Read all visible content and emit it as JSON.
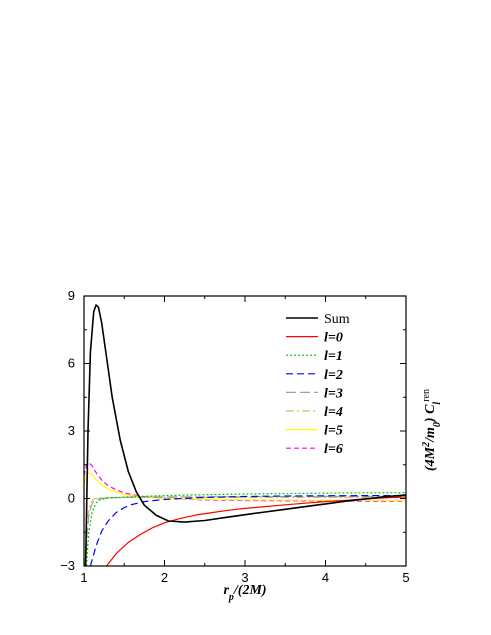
{
  "chart_data": {
    "type": "line",
    "xlabel": "r_p/(2M)",
    "ylabel": "(4M^2/m_0) C_l^ren",
    "xlim": [
      1,
      5
    ],
    "ylim": [
      -3,
      9
    ],
    "x_ticks": [
      "1",
      "2",
      "3",
      "4",
      "5"
    ],
    "y_ticks": [
      "−3",
      "0",
      "3",
      "6",
      "9"
    ],
    "grid": false,
    "legend_position": "top-right",
    "series": [
      {
        "name": "Sum",
        "color": "#000000",
        "dash": "solid",
        "points": [
          [
            1.02,
            -3.0
          ],
          [
            1.05,
            3.0
          ],
          [
            1.08,
            6.5
          ],
          [
            1.12,
            8.3
          ],
          [
            1.15,
            8.6
          ],
          [
            1.18,
            8.5
          ],
          [
            1.22,
            7.8
          ],
          [
            1.28,
            6.3
          ],
          [
            1.35,
            4.5
          ],
          [
            1.45,
            2.6
          ],
          [
            1.55,
            1.2
          ],
          [
            1.65,
            0.3
          ],
          [
            1.75,
            -0.3
          ],
          [
            1.9,
            -0.75
          ],
          [
            2.05,
            -1.0
          ],
          [
            2.25,
            -1.05
          ],
          [
            2.5,
            -0.98
          ],
          [
            2.75,
            -0.85
          ],
          [
            3.0,
            -0.72
          ],
          [
            3.25,
            -0.6
          ],
          [
            3.5,
            -0.48
          ],
          [
            3.75,
            -0.36
          ],
          [
            4.0,
            -0.24
          ],
          [
            4.25,
            -0.12
          ],
          [
            4.5,
            -0.02
          ],
          [
            4.75,
            0.08
          ],
          [
            5.0,
            0.16
          ]
        ]
      },
      {
        "name": "l=0",
        "color": "#ff0000",
        "dash": "solid",
        "points": [
          [
            1.28,
            -3.0
          ],
          [
            1.4,
            -2.45
          ],
          [
            1.55,
            -1.95
          ],
          [
            1.7,
            -1.6
          ],
          [
            1.85,
            -1.3
          ],
          [
            2.0,
            -1.08
          ],
          [
            2.2,
            -0.88
          ],
          [
            2.4,
            -0.73
          ],
          [
            2.6,
            -0.62
          ],
          [
            2.8,
            -0.52
          ],
          [
            3.0,
            -0.44
          ],
          [
            3.25,
            -0.36
          ],
          [
            3.5,
            -0.28
          ],
          [
            3.75,
            -0.21
          ],
          [
            4.0,
            -0.14
          ],
          [
            4.25,
            -0.08
          ],
          [
            4.5,
            -0.02
          ],
          [
            4.75,
            0.03
          ],
          [
            5.0,
            0.07
          ]
        ]
      },
      {
        "name": "l=1",
        "color": "#00c800",
        "dash": "2,2",
        "points": [
          [
            1.03,
            -3.0
          ],
          [
            1.06,
            -1.5
          ],
          [
            1.1,
            -0.6
          ],
          [
            1.15,
            -0.2
          ],
          [
            1.2,
            -0.05
          ],
          [
            1.3,
            0.02
          ],
          [
            1.5,
            0.06
          ],
          [
            1.75,
            0.1
          ],
          [
            2.0,
            0.13
          ],
          [
            2.5,
            0.17
          ],
          [
            3.0,
            0.2
          ],
          [
            3.5,
            0.22
          ],
          [
            4.0,
            0.24
          ],
          [
            4.5,
            0.25
          ],
          [
            5.0,
            0.26
          ]
        ]
      },
      {
        "name": "l=2",
        "color": "#0000ff",
        "dash": "7,4",
        "points": [
          [
            1.08,
            -3.0
          ],
          [
            1.15,
            -2.1
          ],
          [
            1.22,
            -1.45
          ],
          [
            1.3,
            -1.0
          ],
          [
            1.4,
            -0.62
          ],
          [
            1.5,
            -0.4
          ],
          [
            1.6,
            -0.26
          ],
          [
            1.75,
            -0.14
          ],
          [
            2.0,
            -0.04
          ],
          [
            2.5,
            0.05
          ],
          [
            3.0,
            0.09
          ],
          [
            3.5,
            0.11
          ],
          [
            4.0,
            0.12
          ],
          [
            4.5,
            0.13
          ],
          [
            5.0,
            0.13
          ]
        ]
      },
      {
        "name": "l=3",
        "color": "#a0a0a0",
        "dash": "10,4",
        "points": [
          [
            1.02,
            -3.0
          ],
          [
            1.04,
            -1.6
          ],
          [
            1.06,
            -0.8
          ],
          [
            1.09,
            -0.3
          ],
          [
            1.13,
            -0.08
          ],
          [
            1.2,
            0.0
          ],
          [
            1.4,
            0.04
          ],
          [
            1.7,
            0.06
          ],
          [
            2.0,
            0.07
          ],
          [
            3.0,
            0.08
          ],
          [
            4.0,
            0.09
          ],
          [
            5.0,
            0.09
          ]
        ]
      },
      {
        "name": "l=4",
        "color": "#d0c060",
        "dash": "8,3,2,3",
        "points": [
          [
            1.01,
            -3.0
          ],
          [
            1.03,
            -1.7
          ],
          [
            1.05,
            -0.7
          ],
          [
            1.08,
            -0.2
          ],
          [
            1.12,
            -0.02
          ],
          [
            1.2,
            0.04
          ],
          [
            1.5,
            0.05
          ],
          [
            2.0,
            0.05
          ],
          [
            3.0,
            0.05
          ],
          [
            4.0,
            0.05
          ],
          [
            5.0,
            0.05
          ]
        ]
      },
      {
        "name": "l=5",
        "color": "#ffff00",
        "dash": "solid",
        "points": [
          [
            1.0,
            0.6
          ],
          [
            1.03,
            1.05
          ],
          [
            1.06,
            1.15
          ],
          [
            1.1,
            1.05
          ],
          [
            1.15,
            0.85
          ],
          [
            1.22,
            0.6
          ],
          [
            1.3,
            0.42
          ],
          [
            1.4,
            0.28
          ],
          [
            1.5,
            0.18
          ],
          [
            1.7,
            0.07
          ],
          [
            2.0,
            0.0
          ],
          [
            2.5,
            -0.04
          ],
          [
            3.0,
            -0.06
          ],
          [
            4.0,
            -0.08
          ],
          [
            5.0,
            -0.09
          ]
        ]
      },
      {
        "name": "l=6",
        "color": "#ff00ff",
        "dash": "5,3",
        "points": [
          [
            1.0,
            1.0
          ],
          [
            1.03,
            1.45
          ],
          [
            1.06,
            1.6
          ],
          [
            1.1,
            1.45
          ],
          [
            1.15,
            1.15
          ],
          [
            1.22,
            0.82
          ],
          [
            1.3,
            0.57
          ],
          [
            1.4,
            0.38
          ],
          [
            1.5,
            0.25
          ],
          [
            1.7,
            0.1
          ],
          [
            2.0,
            0.0
          ],
          [
            2.5,
            -0.06
          ],
          [
            3.0,
            -0.09
          ],
          [
            4.0,
            -0.11
          ],
          [
            5.0,
            -0.12
          ]
        ]
      }
    ]
  }
}
